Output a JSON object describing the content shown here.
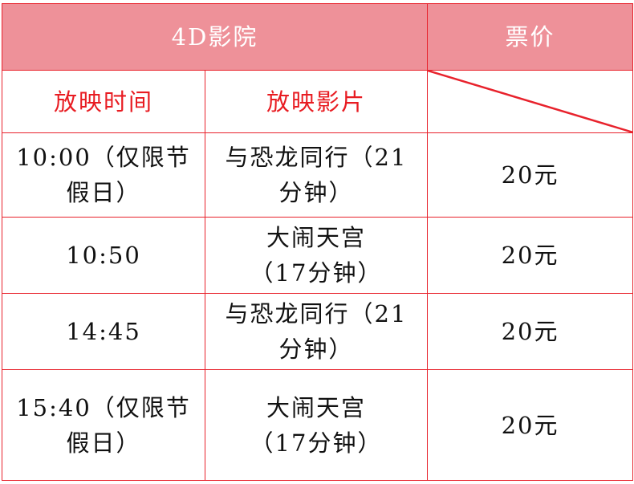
{
  "header": {
    "cinema": "4D影院",
    "price": "票价"
  },
  "subheader": {
    "time": "放映时间",
    "film": "放映影片"
  },
  "rows": [
    {
      "time": [
        "10:00（仅限节",
        "假日）"
      ],
      "film": [
        "与恐龙同行（21",
        "分钟）"
      ],
      "price": "20元"
    },
    {
      "time": [
        "10:50"
      ],
      "film": [
        "大闹天宫",
        "（17分钟）"
      ],
      "price": "20元"
    },
    {
      "time": [
        "14:45"
      ],
      "film": [
        "与恐龙同行（21",
        "分钟）"
      ],
      "price": "20元"
    },
    {
      "time": [
        "15:40（仅限节",
        "假日）"
      ],
      "film": [
        "大闹天宫",
        "（17分钟）"
      ],
      "price": "20元"
    }
  ],
  "colors": {
    "border": "#e8222c",
    "header_bg": "#ee9199",
    "subheader_text": "#e81c22"
  }
}
